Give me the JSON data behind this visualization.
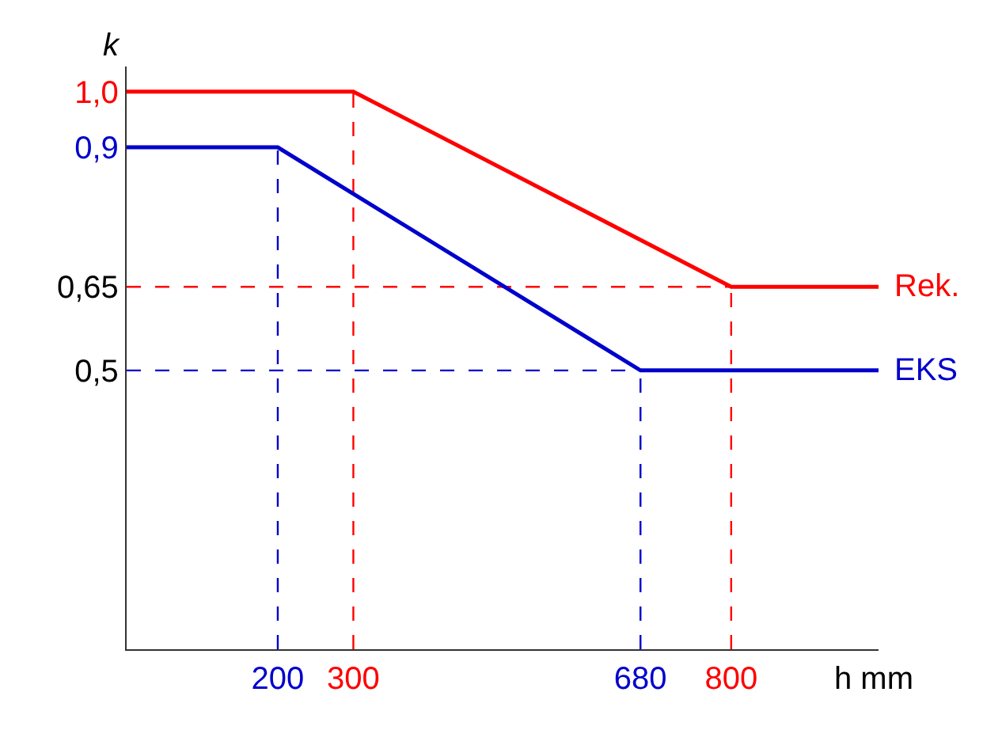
{
  "chart_data": {
    "type": "line",
    "xlabel": "h mm",
    "ylabel": "k",
    "xlim": [
      0,
      995
    ],
    "ylim": [
      0,
      1.045
    ],
    "xticks": [
      200,
      300,
      680,
      800
    ],
    "yticks": [
      {
        "value": 1.0,
        "label": "1,0"
      },
      {
        "value": 0.9,
        "label": "0,9"
      },
      {
        "value": 0.65,
        "label": "0,65"
      },
      {
        "value": 0.5,
        "label": "0,5"
      }
    ],
    "series": [
      {
        "name": "Rek.",
        "color": "#ff0000",
        "x": [
          0,
          300,
          800,
          995
        ],
        "values": [
          1.0,
          1.0,
          0.65,
          0.65
        ]
      },
      {
        "name": "EKS",
        "color": "#0000cc",
        "x": [
          0,
          200,
          680,
          995
        ],
        "values": [
          0.9,
          0.9,
          0.5,
          0.5
        ]
      }
    ],
    "ref_lines": [
      {
        "axis": "x",
        "value": 200,
        "color": "#0000cc",
        "line_style": "dashed"
      },
      {
        "axis": "x",
        "value": 300,
        "color": "#ff0000",
        "line_style": "dashed"
      },
      {
        "axis": "x",
        "value": 680,
        "color": "#0000cc",
        "line_style": "dashed"
      },
      {
        "axis": "x",
        "value": 800,
        "color": "#ff0000",
        "line_style": "dashed"
      },
      {
        "axis": "y",
        "value": 0.65,
        "color": "#ff0000",
        "line_style": "dashed"
      },
      {
        "axis": "y",
        "value": 0.5,
        "color": "#0000cc",
        "line_style": "dashed"
      }
    ],
    "grid": false,
    "legend": false,
    "marker": "none",
    "line_style": "solid"
  }
}
